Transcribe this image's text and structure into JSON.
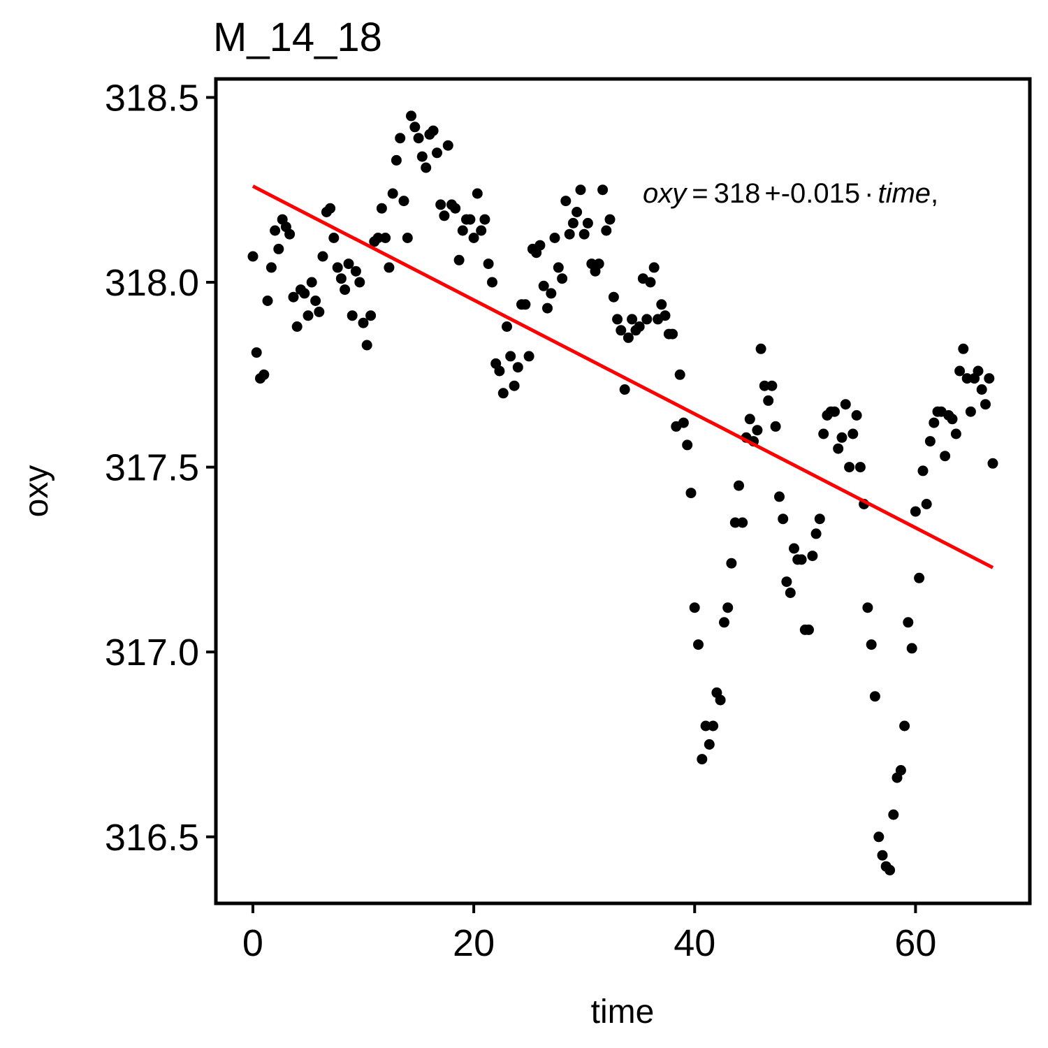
{
  "chart_data": {
    "type": "scatter",
    "title": "M_14_18",
    "xlabel": "time",
    "ylabel": "oxy",
    "xlim": [
      -3.35,
      70.35
    ],
    "ylim": [
      316.32,
      318.55
    ],
    "xticks": [
      0,
      20,
      40,
      60
    ],
    "xtick_labels": [
      "0",
      "20",
      "40",
      "60"
    ],
    "yticks": [
      316.5,
      317.0,
      317.5,
      318.0,
      318.5
    ],
    "ytick_labels": [
      "316.5",
      "317.0",
      "317.5",
      "318.0",
      "318.5"
    ],
    "grid": false,
    "legend": "none",
    "point_color": "#000000",
    "line_color": "#ff0000",
    "fit_line": {
      "slope": -0.0154,
      "intercept": 318.26,
      "x_range": [
        0,
        67
      ]
    },
    "annotation": {
      "left_var": "oxy",
      "equals": "=",
      "intercept": "318",
      "plus": "+",
      "slope": "-0.015",
      "dot": "·",
      "right_var": "time",
      "comma": ","
    },
    "points": [
      [
        0,
        318.07
      ],
      [
        0.33,
        317.81
      ],
      [
        0.67,
        317.74
      ],
      [
        1,
        317.75
      ],
      [
        1.33,
        317.95
      ],
      [
        1.67,
        318.04
      ],
      [
        2,
        318.14
      ],
      [
        2.33,
        318.09
      ],
      [
        2.67,
        318.17
      ],
      [
        3,
        318.15
      ],
      [
        3.33,
        318.13
      ],
      [
        3.67,
        317.96
      ],
      [
        4,
        317.88
      ],
      [
        4.33,
        317.98
      ],
      [
        4.67,
        317.97
      ],
      [
        5,
        317.91
      ],
      [
        5.33,
        318.0
      ],
      [
        5.67,
        317.95
      ],
      [
        6,
        317.92
      ],
      [
        6.33,
        318.07
      ],
      [
        6.67,
        318.19
      ],
      [
        7,
        318.2
      ],
      [
        7.33,
        318.12
      ],
      [
        7.67,
        318.04
      ],
      [
        8,
        318.01
      ],
      [
        8.33,
        317.98
      ],
      [
        8.67,
        318.05
      ],
      [
        9,
        317.91
      ],
      [
        9.33,
        318.03
      ],
      [
        9.67,
        318.0
      ],
      [
        10,
        317.89
      ],
      [
        10.33,
        317.83
      ],
      [
        10.67,
        317.91
      ],
      [
        11,
        318.11
      ],
      [
        11.33,
        318.12
      ],
      [
        11.67,
        318.2
      ],
      [
        12,
        318.12
      ],
      [
        12.33,
        318.04
      ],
      [
        12.67,
        318.24
      ],
      [
        13,
        318.33
      ],
      [
        13.33,
        318.39
      ],
      [
        13.67,
        318.22
      ],
      [
        14,
        318.12
      ],
      [
        14.33,
        318.45
      ],
      [
        14.67,
        318.42
      ],
      [
        15,
        318.39
      ],
      [
        15.33,
        318.34
      ],
      [
        15.67,
        318.31
      ],
      [
        16,
        318.4
      ],
      [
        16.33,
        318.41
      ],
      [
        16.67,
        318.35
      ],
      [
        17,
        318.21
      ],
      [
        17.33,
        318.18
      ],
      [
        17.67,
        318.37
      ],
      [
        18,
        318.21
      ],
      [
        18.33,
        318.2
      ],
      [
        18.67,
        318.06
      ],
      [
        19,
        318.14
      ],
      [
        19.33,
        318.17
      ],
      [
        19.67,
        318.17
      ],
      [
        20,
        318.12
      ],
      [
        20.33,
        318.24
      ],
      [
        20.67,
        318.14
      ],
      [
        21,
        318.17
      ],
      [
        21.33,
        318.05
      ],
      [
        21.67,
        318.0
      ],
      [
        22,
        317.78
      ],
      [
        22.33,
        317.76
      ],
      [
        22.67,
        317.7
      ],
      [
        23,
        317.88
      ],
      [
        23.33,
        317.8
      ],
      [
        23.67,
        317.72
      ],
      [
        24,
        317.77
      ],
      [
        24.33,
        317.94
      ],
      [
        24.67,
        317.94
      ],
      [
        25,
        317.8
      ],
      [
        25.33,
        318.09
      ],
      [
        25.67,
        318.08
      ],
      [
        26,
        318.1
      ],
      [
        26.33,
        317.99
      ],
      [
        26.67,
        317.93
      ],
      [
        27,
        317.97
      ],
      [
        27.33,
        318.12
      ],
      [
        27.67,
        318.04
      ],
      [
        28,
        318.01
      ],
      [
        28.33,
        318.22
      ],
      [
        28.67,
        318.13
      ],
      [
        29,
        318.16
      ],
      [
        29.33,
        318.19
      ],
      [
        29.67,
        318.25
      ],
      [
        30,
        318.13
      ],
      [
        30.33,
        318.16
      ],
      [
        30.67,
        318.05
      ],
      [
        31,
        318.03
      ],
      [
        31.33,
        318.05
      ],
      [
        31.67,
        318.25
      ],
      [
        32,
        318.14
      ],
      [
        32.33,
        318.17
      ],
      [
        32.67,
        317.96
      ],
      [
        33,
        317.9
      ],
      [
        33.33,
        317.87
      ],
      [
        33.67,
        317.71
      ],
      [
        34,
        317.85
      ],
      [
        34.33,
        317.9
      ],
      [
        34.67,
        317.87
      ],
      [
        35,
        317.88
      ],
      [
        35.33,
        318.01
      ],
      [
        35.67,
        317.9
      ],
      [
        36,
        318.0
      ],
      [
        36.33,
        318.04
      ],
      [
        36.67,
        317.9
      ],
      [
        37,
        317.94
      ],
      [
        37.33,
        317.91
      ],
      [
        37.67,
        317.86
      ],
      [
        38,
        317.86
      ],
      [
        38.33,
        317.61
      ],
      [
        38.67,
        317.75
      ],
      [
        39,
        317.62
      ],
      [
        39.33,
        317.56
      ],
      [
        39.67,
        317.43
      ],
      [
        40,
        317.12
      ],
      [
        40.33,
        317.02
      ],
      [
        40.67,
        316.71
      ],
      [
        41,
        316.8
      ],
      [
        41.33,
        316.75
      ],
      [
        41.67,
        316.8
      ],
      [
        42,
        316.89
      ],
      [
        42.33,
        316.87
      ],
      [
        42.67,
        317.08
      ],
      [
        43,
        317.12
      ],
      [
        43.33,
        317.24
      ],
      [
        43.67,
        317.35
      ],
      [
        44,
        317.45
      ],
      [
        44.33,
        317.35
      ],
      [
        44.67,
        317.58
      ],
      [
        45,
        317.63
      ],
      [
        45.33,
        317.57
      ],
      [
        45.67,
        317.6
      ],
      [
        46,
        317.82
      ],
      [
        46.33,
        317.72
      ],
      [
        46.67,
        317.68
      ],
      [
        47,
        317.72
      ],
      [
        47.33,
        317.61
      ],
      [
        47.67,
        317.42
      ],
      [
        48,
        317.36
      ],
      [
        48.33,
        317.19
      ],
      [
        48.67,
        317.16
      ],
      [
        49,
        317.28
      ],
      [
        49.33,
        317.25
      ],
      [
        49.67,
        317.25
      ],
      [
        50,
        317.06
      ],
      [
        50.33,
        317.06
      ],
      [
        50.67,
        317.26
      ],
      [
        51,
        317.32
      ],
      [
        51.33,
        317.36
      ],
      [
        51.67,
        317.59
      ],
      [
        52,
        317.64
      ],
      [
        52.33,
        317.65
      ],
      [
        52.67,
        317.65
      ],
      [
        53,
        317.55
      ],
      [
        53.33,
        317.58
      ],
      [
        53.67,
        317.67
      ],
      [
        54,
        317.5
      ],
      [
        54.33,
        317.59
      ],
      [
        54.67,
        317.64
      ],
      [
        55,
        317.5
      ],
      [
        55.33,
        317.4
      ],
      [
        55.67,
        317.12
      ],
      [
        56,
        317.02
      ],
      [
        56.33,
        316.88
      ],
      [
        56.67,
        316.5
      ],
      [
        57,
        316.45
      ],
      [
        57.33,
        316.42
      ],
      [
        57.67,
        316.41
      ],
      [
        58,
        316.56
      ],
      [
        58.33,
        316.66
      ],
      [
        58.67,
        316.68
      ],
      [
        59,
        316.8
      ],
      [
        59.33,
        317.08
      ],
      [
        59.67,
        317.01
      ],
      [
        60,
        317.38
      ],
      [
        60.33,
        317.2
      ],
      [
        60.67,
        317.49
      ],
      [
        61,
        317.4
      ],
      [
        61.33,
        317.57
      ],
      [
        61.67,
        317.62
      ],
      [
        62,
        317.65
      ],
      [
        62.33,
        317.65
      ],
      [
        62.67,
        317.53
      ],
      [
        63,
        317.64
      ],
      [
        63.33,
        317.63
      ],
      [
        63.67,
        317.59
      ],
      [
        64,
        317.76
      ],
      [
        64.33,
        317.82
      ],
      [
        64.67,
        317.74
      ],
      [
        65,
        317.65
      ],
      [
        65.33,
        317.74
      ],
      [
        65.67,
        317.76
      ],
      [
        66,
        317.71
      ],
      [
        66.33,
        317.67
      ],
      [
        66.67,
        317.74
      ],
      [
        67,
        317.51
      ]
    ]
  }
}
